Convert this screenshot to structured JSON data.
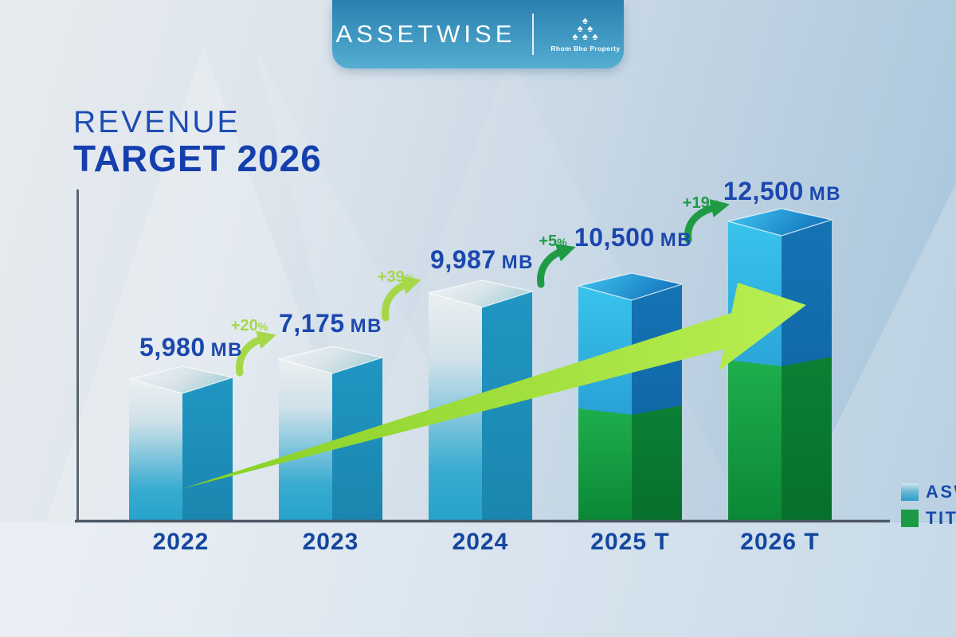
{
  "banner": {
    "brand": "ASSETWISE",
    "logo_caption": "Rhom Bho Property",
    "logo_rows": [
      "♠",
      "♠ ♠",
      "♠ ♠ ♠"
    ]
  },
  "title": {
    "line1": "REVENUE",
    "line2": "TARGET 2026"
  },
  "legend": {
    "items": [
      {
        "label": "ASW",
        "color": "#2f9dc8"
      },
      {
        "label": "TITLE",
        "color": "#1b9b43"
      }
    ]
  },
  "chart_data": {
    "type": "bar",
    "title": "REVENUE TARGET 2026",
    "unit": "MB",
    "categories": [
      "2022",
      "2023",
      "2024",
      "2025 T",
      "2026 T"
    ],
    "values": [
      5980,
      7175,
      9987,
      10500,
      12500
    ],
    "value_labels": [
      "5,980",
      "7,175",
      "9,987",
      "10,500",
      "12,500"
    ],
    "growth": [
      {
        "from": "2022",
        "to": "2023",
        "label": "+20"
      },
      {
        "from": "2023",
        "to": "2024",
        "label": "+39"
      },
      {
        "from": "2024",
        "to": "2025 T",
        "label": "+5"
      },
      {
        "from": "2025 T",
        "to": "2026 T",
        "label": "+19"
      }
    ],
    "percent_sign": "%",
    "growth_colors": [
      "#a5d748",
      "#a5d748",
      "#209b45",
      "#209b45"
    ],
    "legend_entries": [
      "ASW",
      "TITLE"
    ],
    "stacked_bars": {
      "2025 T": {
        "segments": [
          "TITLE",
          "ASW"
        ],
        "green_share_estimate": 0.46
      },
      "2026 T": {
        "segments": [
          "TITLE",
          "ASW"
        ],
        "green_share_estimate": 0.53
      }
    },
    "ylim": [
      0,
      13000
    ],
    "grid": false,
    "legend_position": "right-edge",
    "trend_arrow": "large light-green arrow rising from 2022 base to 2026 bar"
  },
  "colors": {
    "accent_blue_text": "#1c47ae",
    "bar_teal_side": "#1e96c0",
    "bar_blue": "#1b86c8",
    "bar_green": "#0f9040",
    "arrow_light_green": "#a5d748",
    "arrow_dark_green": "#209b45",
    "axis": "#4d5965",
    "banner_blue": "#3f97c1"
  }
}
